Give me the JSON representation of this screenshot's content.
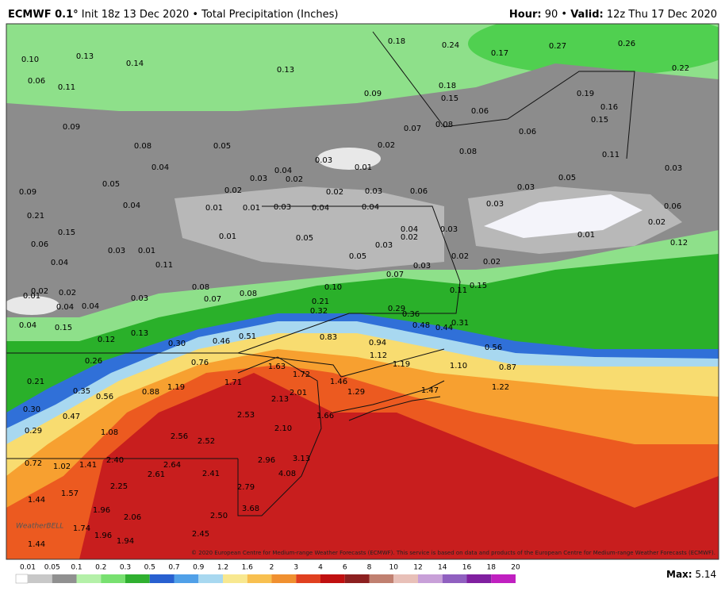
{
  "header": {
    "model": "ECMWF 0.1°",
    "init": "Init 18z 13 Dec 2020 • Total Precipitation (Inches)",
    "hour_label": "Hour:",
    "hour": "90",
    "valid_label": "Valid:",
    "valid": "12z Thu 17 Dec 2020"
  },
  "map": {
    "labels": [
      "0.13",
      "0.14",
      "0.13",
      "0.18",
      "0.24",
      "0.17",
      "0.27",
      "0.26",
      "0.22",
      "0.10",
      "0.06",
      "0.11",
      "0.09",
      "0.18",
      "0.15",
      "0.19",
      "0.16",
      "0.15",
      "0.06",
      "0.08",
      "0.07",
      "0.06",
      "0.11",
      "0.09",
      "0.08",
      "0.05",
      "0.02",
      "0.08",
      "0.04",
      "0.03",
      "0.01",
      "0.04",
      "0.03",
      "0.02",
      "0.05",
      "0.03",
      "0.03",
      "0.05",
      "0.02",
      "0.02",
      "0.03",
      "0.06",
      "0.09",
      "0.04",
      "0.01",
      "0.01",
      "0.03",
      "0.04",
      "0.04",
      "0.03",
      "0.04",
      "0.02",
      "0.03",
      "0.02",
      "0.06",
      "0.21",
      "0.15",
      "0.01",
      "0.05",
      "0.06",
      "0.03",
      "0.01",
      "0.12",
      "0.04",
      "0.03",
      "0.01",
      "0.05",
      "0.02",
      "0.03",
      "0.02",
      "0.11",
      "0.07",
      "0.10",
      "0.15",
      "0.11",
      "0.08",
      "0.02",
      "0.02",
      "0.01",
      "0.03",
      "0.07",
      "0.08",
      "0.04",
      "0.04",
      "0.21",
      "0.32",
      "0.29",
      "0.36",
      "0.15",
      "0.04",
      "0.13",
      "0.48",
      "0.44",
      "0.31",
      "0.12",
      "0.30",
      "0.46",
      "0.51",
      "0.83",
      "0.94",
      "0.56",
      "1.12",
      "1.19",
      "0.76",
      "0.26",
      "1.63",
      "1.72",
      "1.10",
      "0.87",
      "0.21",
      "1.46",
      "1.71",
      "1.19",
      "0.88",
      "0.35",
      "1.22",
      "1.29",
      "1.47",
      "2.01",
      "2.13",
      "0.56",
      "0.30",
      "0.47",
      "2.53",
      "1.66",
      "2.10",
      "1.08",
      "0.29",
      "2.56",
      "2.52",
      "2.96",
      "3.13",
      "0.72",
      "1.02",
      "1.41",
      "2.40",
      "2.64",
      "4.08",
      "2.61",
      "2.41",
      "2.79",
      "2.25",
      "1.44",
      "1.57",
      "1.96",
      "3.68",
      "2.06",
      "2.50",
      "1.74",
      "1.96",
      "1.94",
      "1.44",
      "2.45"
    ]
  },
  "copyright": "© 2020 European Centre for Medium-range Weather Forecasts (ECMWF). This service is based on data and products of the European Centre for Medium-range Weather Forecasts (ECMWF).",
  "watermark": "WeatherBELL",
  "colorbar": {
    "ticks": [
      "0.01",
      "0.05",
      "0.1",
      "0.2",
      "0.3",
      "0.5",
      "0.7",
      "0.9",
      "1.2",
      "1.6",
      "2",
      "3",
      "4",
      "6",
      "8",
      "10",
      "12",
      "14",
      "16",
      "18",
      "20"
    ],
    "colors": [
      "#c8c8c8",
      "#909090",
      "#b4f0a8",
      "#78e070",
      "#30b030",
      "#2860d0",
      "#50a0e8",
      "#a8d8f0",
      "#f8e890",
      "#f8c050",
      "#f09030",
      "#e04020",
      "#c01010",
      "#8c2020",
      "#c08070",
      "#e8c0b8",
      "#c8a0d8",
      "#9060c0",
      "#8020a0",
      "#c020c0"
    ]
  },
  "max": {
    "label": "Max:",
    "value": "5.14"
  }
}
